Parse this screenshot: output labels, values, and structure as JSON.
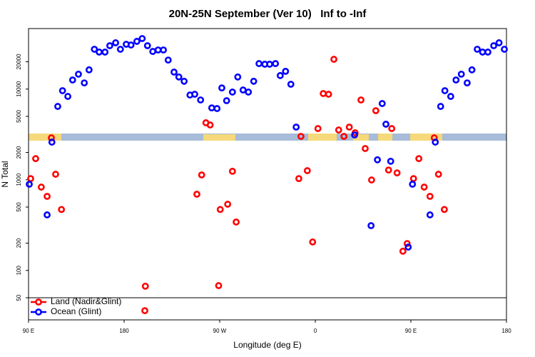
{
  "chart_data": {
    "type": "scatter",
    "title": "20N-25N September (Ver 10)   Inf to -Inf",
    "x_label": "Longitude (deg E)",
    "y_label": "N Total",
    "log_y": true,
    "legend": "lower left",
    "marker": "open-circle",
    "xlim": [
      90,
      540
    ],
    "ylim": [
      28.5,
      46500
    ],
    "xticks": [
      {
        "value": 90,
        "label": "90 E"
      },
      {
        "value": 180,
        "label": "180"
      },
      {
        "value": 270,
        "label": "90 W"
      },
      {
        "value": 360,
        "label": "0"
      },
      {
        "value": 450,
        "label": "90 E"
      },
      {
        "value": 540,
        "label": "180"
      }
    ],
    "yticks": [
      50,
      100,
      200,
      500,
      1000,
      2000,
      5000,
      10000,
      20000
    ],
    "series": [
      {
        "name": "Land (Nadir&Glint)",
        "color": "#ff0000",
        "x": [
          92,
          96.7,
          102,
          107.5,
          111.5,
          115.5,
          121,
          200,
          199.5,
          248.5,
          253,
          257,
          261,
          270.5,
          269,
          277.5,
          282,
          285.5,
          344.5,
          346.5,
          352.5,
          357.5,
          362.5,
          367.5,
          372.5,
          377.5,
          382,
          387,
          392,
          397.5,
          403,
          407,
          413,
          417,
          429,
          432,
          437,
          442.5,
          446.5,
          452.5,
          457.5,
          462.5,
          468,
          472,
          476,
          481.5
        ],
        "values": [
          1030,
          1710,
          830,
          656,
          2900,
          1150,
          470,
          67,
          36,
          693,
          1130,
          4250,
          4020,
          470,
          68,
          537,
          1240,
          342,
          1030,
          3010,
          1260,
          206,
          3670,
          8930,
          8770,
          21300,
          3540,
          3010,
          3810,
          3300,
          7590,
          2210,
          995,
          5780,
          1280,
          3670,
          1190,
          163,
          198,
          1030,
          1710,
          830,
          656,
          2900,
          1150,
          470
        ]
      },
      {
        "name": "Ocean (Glint)",
        "color": "#0000ff",
        "x": [
          90.7,
          107.5,
          112,
          117.5,
          122,
          127,
          131.5,
          137,
          142.5,
          147,
          152,
          156.5,
          162,
          166.5,
          172,
          176.5,
          182,
          186.5,
          192,
          197,
          202,
          207,
          212,
          217,
          221.5,
          227,
          231.5,
          236.5,
          242,
          246.5,
          252,
          262.5,
          267.5,
          272,
          276.5,
          282,
          287,
          292,
          297,
          302,
          307,
          312.5,
          317,
          322.5,
          327,
          332,
          337,
          342,
          397,
          412.5,
          418.5,
          423,
          426.5,
          431,
          447.5,
          451.5,
          468,
          473,
          478,
          482,
          487.5,
          492.5,
          497.5,
          503,
          507.5,
          512.5,
          517.5,
          522.5,
          528,
          533,
          538
        ],
        "values": [
          893,
          410,
          2600,
          6440,
          9600,
          8300,
          12600,
          14600,
          11700,
          16300,
          27500,
          25600,
          25600,
          30100,
          32400,
          27500,
          31200,
          30600,
          33600,
          36100,
          30100,
          26000,
          27000,
          27000,
          20900,
          15400,
          13600,
          12200,
          8600,
          8770,
          7590,
          6200,
          6100,
          10300,
          7450,
          9270,
          13600,
          9770,
          9270,
          12200,
          19100,
          18800,
          18800,
          19100,
          14100,
          15700,
          11300,
          3810,
          3120,
          312,
          1660,
          6930,
          4100,
          1600,
          181,
          893,
          410,
          2600,
          6440,
          9600,
          8300,
          12600,
          14600,
          11700,
          16300,
          27500,
          25600,
          25600,
          30100,
          32400,
          27500
        ]
      }
    ]
  }
}
